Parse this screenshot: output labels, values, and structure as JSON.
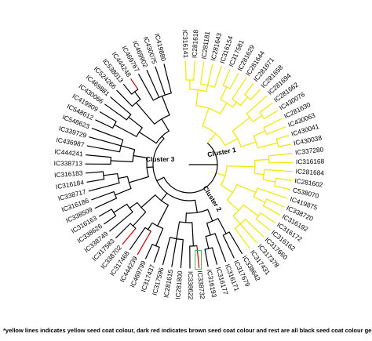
{
  "figure": {
    "clusters": [
      {
        "name": "Cluster 1",
        "label": "Cluster 1"
      },
      {
        "name": "Cluster 2",
        "label": "Cluster 2"
      },
      {
        "name": "Cluster 3",
        "label": "Cluster 3"
      }
    ],
    "colors": {
      "yellow_seed_coat": "#f2e600",
      "brown_seed_coat": "#cc0000",
      "black_seed_coat": "#000000",
      "highlight_box": "#4caf50"
    },
    "leaves": [
      {
        "label": "IC316141",
        "seed_coat": "yellow"
      },
      {
        "label": "IC281618",
        "seed_coat": "yellow"
      },
      {
        "label": "IC281181",
        "seed_coat": "yellow"
      },
      {
        "label": "IC281643",
        "seed_coat": "yellow"
      },
      {
        "label": "IC316154",
        "seed_coat": "yellow"
      },
      {
        "label": "IC317581",
        "seed_coat": "yellow"
      },
      {
        "label": "IC281629",
        "seed_coat": "yellow"
      },
      {
        "label": "IC281644",
        "seed_coat": "yellow"
      },
      {
        "label": "IC281671",
        "seed_coat": "yellow"
      },
      {
        "label": "IC281658",
        "seed_coat": "yellow"
      },
      {
        "label": "IC281694",
        "seed_coat": "yellow"
      },
      {
        "label": "IC281662",
        "seed_coat": "yellow"
      },
      {
        "label": "IC430076",
        "seed_coat": "yellow"
      },
      {
        "label": "IC281630",
        "seed_coat": "yellow"
      },
      {
        "label": "IC430063",
        "seed_coat": "yellow"
      },
      {
        "label": "IC430041",
        "seed_coat": "yellow"
      },
      {
        "label": "IC430038",
        "seed_coat": "yellow"
      },
      {
        "label": "IC337280",
        "seed_coat": "yellow"
      },
      {
        "label": "IC316168",
        "seed_coat": "yellow"
      },
      {
        "label": "IC281684",
        "seed_coat": "yellow"
      },
      {
        "label": "IC281602",
        "seed_coat": "yellow"
      },
      {
        "label": "C538070",
        "seed_coat": "yellow"
      },
      {
        "label": "IC419875",
        "seed_coat": "yellow"
      },
      {
        "label": "IC338720",
        "seed_coat": "yellow"
      },
      {
        "label": "IC316192",
        "seed_coat": "yellow"
      },
      {
        "label": "IC316172",
        "seed_coat": "yellow"
      },
      {
        "label": "IC316162",
        "seed_coat": "yellow"
      },
      {
        "label": "IC317660",
        "seed_coat": "yellow"
      },
      {
        "label": "IC317378",
        "seed_coat": "yellow"
      },
      {
        "label": "IC317431",
        "seed_coat": "yellow"
      },
      {
        "label": "IC338642",
        "seed_coat": "black"
      },
      {
        "label": "IC317679",
        "seed_coat": "black"
      },
      {
        "label": "IC316171",
        "seed_coat": "black"
      },
      {
        "label": "IC316177",
        "seed_coat": "black"
      },
      {
        "label": "IC316193",
        "seed_coat": "black"
      },
      {
        "label": "IC338732",
        "seed_coat": "brown"
      },
      {
        "label": "IC338622",
        "seed_coat": "black"
      },
      {
        "label": "IC281800",
        "seed_coat": "black"
      },
      {
        "label": "IC281615",
        "seed_coat": "black"
      },
      {
        "label": "IC317596",
        "seed_coat": "black"
      },
      {
        "label": "IC317437",
        "seed_coat": "black"
      },
      {
        "label": "IC469799",
        "seed_coat": "black"
      },
      {
        "label": "IC444239",
        "seed_coat": "brown"
      },
      {
        "label": "IC317468",
        "seed_coat": "black"
      },
      {
        "label": "IC338702",
        "seed_coat": "brown"
      },
      {
        "label": "IC317583",
        "seed_coat": "black"
      },
      {
        "label": "IC338749",
        "seed_coat": "black"
      },
      {
        "label": "IC338626",
        "seed_coat": "black"
      },
      {
        "label": "IC316163",
        "seed_coat": "black"
      },
      {
        "label": "IC338509",
        "seed_coat": "black"
      },
      {
        "label": "IC316186",
        "seed_coat": "black"
      },
      {
        "label": "IC338717",
        "seed_coat": "black"
      },
      {
        "label": "IC316184",
        "seed_coat": "black"
      },
      {
        "label": "IC316183",
        "seed_coat": "black"
      },
      {
        "label": "IC338713",
        "seed_coat": "black"
      },
      {
        "label": "IC444241",
        "seed_coat": "black"
      },
      {
        "label": "IC436987",
        "seed_coat": "black"
      },
      {
        "label": "IC339729",
        "seed_coat": "black"
      },
      {
        "label": "IC548623",
        "seed_coat": "black"
      },
      {
        "label": "IC548612",
        "seed_coat": "black"
      },
      {
        "label": "IC419909",
        "seed_coat": "black"
      },
      {
        "label": "IC430066",
        "seed_coat": "black"
      },
      {
        "label": "IC469881",
        "seed_coat": "black"
      },
      {
        "label": "IC524266",
        "seed_coat": "black"
      },
      {
        "label": "IC538013",
        "seed_coat": "black"
      },
      {
        "label": "IC444248",
        "seed_coat": "brown"
      },
      {
        "label": "IC469767",
        "seed_coat": "black"
      },
      {
        "label": "IC469902",
        "seed_coat": "black"
      },
      {
        "label": "IC430075",
        "seed_coat": "black"
      },
      {
        "label": "IC419880",
        "seed_coat": "black"
      }
    ],
    "footnote": "*yellow lines indicates yellow seed coat colour, dark red indicates brown seed coat colour and rest are all black seed coat colour genotypes."
  }
}
